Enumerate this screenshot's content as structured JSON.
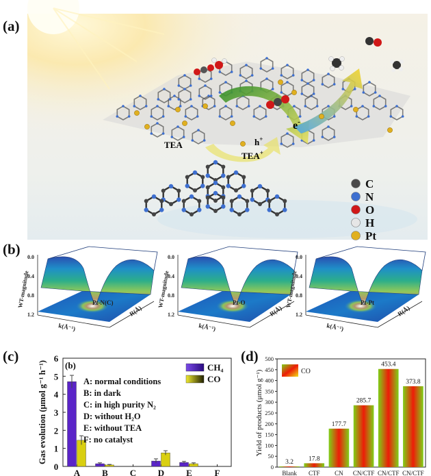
{
  "panels": {
    "a": "(a)",
    "b": "(b)",
    "c": "(c)",
    "d": "(d)"
  },
  "panel_a": {
    "labels": {
      "tea": "TEA",
      "tea_plus": "TEA",
      "tea_plus_sup": "+",
      "h_plus": "h",
      "h_plus_sup": "+",
      "e_minus": "e",
      "e_minus_sup": "-"
    },
    "legend": [
      {
        "label": "C",
        "color": "#4a4a4a"
      },
      {
        "label": "N",
        "color": "#3d6fd0"
      },
      {
        "label": "O",
        "color": "#d01818"
      },
      {
        "label": "H",
        "color": "#e6e6e6"
      },
      {
        "label": "Pt",
        "color": "#e0b020"
      }
    ]
  },
  "panel_b": {
    "plots": [
      {
        "peak": "Pt-N(C)"
      },
      {
        "peak": "Pt-O"
      },
      {
        "peak": "Pt-Pt"
      }
    ],
    "zlabel": "WT-magnitude",
    "xlabel": "k(Å⁻¹)",
    "ylabel": "R(Å)",
    "zticks": [
      "0.0",
      "0.4",
      "0.8",
      "1.2"
    ]
  },
  "chart_data": [
    {
      "type": "bar",
      "inset_label": "(b)",
      "ylabel": "Gas evolution (μmol g⁻¹ h⁻¹)",
      "categories": [
        "A",
        "B",
        "C",
        "D",
        "E",
        "F"
      ],
      "ylim": [
        0,
        6
      ],
      "yticks": [
        "0",
        "1",
        "2",
        "3",
        "4",
        "5",
        "6"
      ],
      "series": [
        {
          "name": "CH₄",
          "color": "#5a24c8",
          "values": [
            4.7,
            0.15,
            0,
            0.3,
            0.22,
            0
          ],
          "errors": [
            0.35,
            0.05,
            0,
            0.12,
            0.06,
            0
          ]
        },
        {
          "name": "CO",
          "color": "#d9cf10",
          "values": [
            1.45,
            0.08,
            0,
            0.75,
            0.15,
            0
          ],
          "errors": [
            0.25,
            0.03,
            0,
            0.12,
            0.05,
            0
          ]
        }
      ],
      "annotations": [
        "A: normal conditions",
        "B: in dark",
        "C: in high purity N₂",
        "D: without H₂O",
        "E: without TEA",
        "F: no catalyst"
      ]
    },
    {
      "type": "bar",
      "ylabel": "Yield of products (μmol g⁻¹)",
      "categories": [
        "Blank",
        "CTF",
        "CN",
        "CN/CTF",
        "CN/CTF",
        "CN/CTF"
      ],
      "values": [
        3.2,
        17.8,
        177.7,
        285.7,
        453.4,
        373.8
      ],
      "value_labels": [
        "3.2",
        "17.8",
        "177.7",
        "285.7",
        "453.4",
        "373.8"
      ],
      "ylim": [
        0,
        500
      ],
      "yticks": [
        "0",
        "50",
        "100",
        "150",
        "200",
        "250",
        "300",
        "350",
        "400",
        "450",
        "500"
      ],
      "series": [
        {
          "name": "CO"
        }
      ]
    }
  ]
}
